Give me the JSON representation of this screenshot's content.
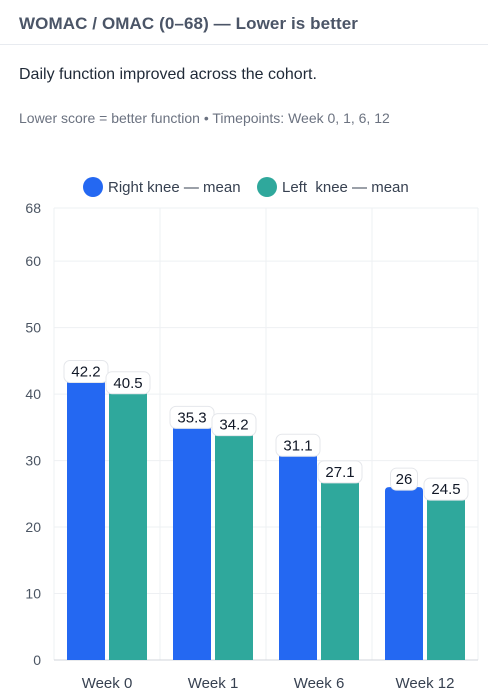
{
  "header": {
    "title": "WOMAC / OMAC (0–68) — Lower is better"
  },
  "subtitle": "Daily function improved across the cohort.",
  "note": "Lower score = better function • Timepoints: Week 0, 1, 6, 12",
  "chart_data": {
    "type": "bar",
    "categories": [
      "Week 0",
      "Week 1",
      "Week 6",
      "Week 12"
    ],
    "series": [
      {
        "name": "Right knee — mean",
        "color": "#2468f2",
        "values": [
          42.2,
          35.3,
          31.1,
          26
        ]
      },
      {
        "name": "Left  knee — mean",
        "color": "#2fa89c",
        "values": [
          40.5,
          34.2,
          27.1,
          24.5
        ]
      }
    ],
    "ylim": [
      0,
      68
    ],
    "yticks": [
      0,
      10,
      20,
      30,
      40,
      50,
      60,
      68
    ],
    "grid": true,
    "legend_position": "top-center",
    "data_labels": true
  }
}
